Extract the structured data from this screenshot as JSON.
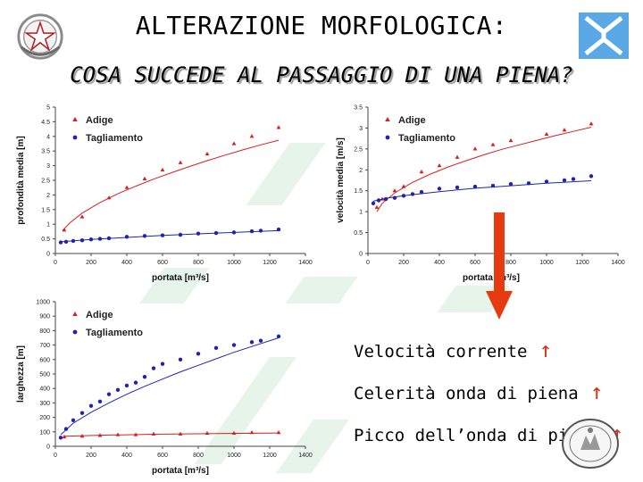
{
  "header": {
    "title_line1": "ALTERAZIONE MORFOLOGICA:",
    "title_line2": "COSA SUCCEDE AL PASSAGGIO DI UNA PIENA?"
  },
  "bullets": [
    {
      "text": "Velocità corrente",
      "arrow": "↑"
    },
    {
      "text": "Celerità onda di piena",
      "arrow": "↑"
    },
    {
      "text": "Picco dell’onda di piena",
      "arrow": "↑"
    }
  ],
  "colors": {
    "adige": "#d42020",
    "tagliamento": "#1f24b0",
    "arrow": "#e03010"
  },
  "icons": {
    "emblem": "italian-republic-emblem-icon",
    "logo": "institution-logo-icon",
    "seal": "university-seal-icon",
    "arrow": "red-down-arrow-icon"
  },
  "chart_data": [
    {
      "type": "scatter",
      "xlabel": "portata [m³/s]",
      "ylabel": "profondità media [m]",
      "xlim": [
        0,
        1400
      ],
      "ylim": [
        0,
        5
      ],
      "xticks": [
        "0",
        "200",
        "400",
        "600",
        "800",
        "1000",
        "1200",
        "1400"
      ],
      "yticks": [
        "0",
        "0.5",
        "1",
        "1.5",
        "2",
        "2.5",
        "3",
        "3.5",
        "4",
        "4.5",
        "5"
      ],
      "legend_position": "top-left",
      "series": [
        {
          "name": "Adige",
          "marker": "triangle",
          "x": [
            50,
            150,
            300,
            400,
            500,
            600,
            700,
            850,
            1000,
            1100,
            1250
          ],
          "y": [
            0.8,
            1.25,
            1.9,
            2.25,
            2.55,
            2.85,
            3.1,
            3.4,
            3.75,
            4.0,
            4.3
          ],
          "fit_x": [
            40,
            80,
            150,
            250,
            350,
            450,
            550,
            650,
            750,
            850,
            950,
            1050,
            1150,
            1250
          ],
          "fit_y": [
            0.78,
            1.04,
            1.38,
            1.74,
            2.04,
            2.3,
            2.54,
            2.76,
            2.97,
            3.17,
            3.36,
            3.54,
            3.71,
            3.87
          ]
        },
        {
          "name": "Tagliamento",
          "marker": "circle",
          "x": [
            30,
            60,
            100,
            150,
            200,
            250,
            300,
            400,
            500,
            600,
            700,
            800,
            900,
            1000,
            1100,
            1150,
            1250
          ],
          "y": [
            0.38,
            0.4,
            0.43,
            0.45,
            0.48,
            0.5,
            0.52,
            0.57,
            0.6,
            0.62,
            0.64,
            0.68,
            0.7,
            0.72,
            0.76,
            0.78,
            0.82
          ],
          "fit_x": [
            30,
            200,
            400,
            600,
            800,
            1000,
            1250
          ],
          "fit_y": [
            0.4,
            0.48,
            0.55,
            0.62,
            0.67,
            0.72,
            0.78
          ]
        }
      ]
    },
    {
      "type": "scatter",
      "xlabel": "portata [m³/s]",
      "ylabel": "velocità media [m/s]",
      "xlim": [
        0,
        1400
      ],
      "ylim": [
        0,
        3.5
      ],
      "xticks": [
        "0",
        "200",
        "400",
        "600",
        "800",
        "1000",
        "1200",
        "1400"
      ],
      "yticks": [
        "0",
        "0.5",
        "1",
        "1.5",
        "2",
        "2.5",
        "3",
        "3.5"
      ],
      "legend_position": "top-left",
      "series": [
        {
          "name": "Adige",
          "marker": "triangle",
          "x": [
            50,
            80,
            150,
            200,
            300,
            400,
            500,
            600,
            700,
            800,
            1000,
            1100,
            1250
          ],
          "y": [
            1.1,
            1.3,
            1.5,
            1.6,
            1.95,
            2.1,
            2.3,
            2.5,
            2.6,
            2.7,
            2.85,
            2.95,
            3.1
          ],
          "fit_x": [
            50,
            80,
            150,
            250,
            350,
            450,
            550,
            650,
            750,
            850,
            950,
            1050,
            1150,
            1250
          ],
          "fit_y": [
            1.0,
            1.2,
            1.45,
            1.7,
            1.9,
            2.07,
            2.22,
            2.36,
            2.49,
            2.6,
            2.71,
            2.82,
            2.92,
            3.02
          ]
        },
        {
          "name": "Tagliamento",
          "marker": "circle",
          "x": [
            30,
            60,
            100,
            150,
            200,
            250,
            300,
            400,
            500,
            600,
            700,
            800,
            900,
            1000,
            1100,
            1150,
            1250
          ],
          "y": [
            1.2,
            1.27,
            1.3,
            1.33,
            1.38,
            1.42,
            1.47,
            1.55,
            1.58,
            1.6,
            1.62,
            1.66,
            1.68,
            1.72,
            1.75,
            1.78,
            1.85
          ],
          "fit_x": [
            30,
            100,
            200,
            400,
            600,
            800,
            1000,
            1250
          ],
          "fit_y": [
            1.25,
            1.32,
            1.38,
            1.48,
            1.56,
            1.62,
            1.68,
            1.74
          ]
        }
      ]
    },
    {
      "type": "scatter",
      "xlabel": "portata [m³/s]",
      "ylabel": "larghezza [m]",
      "xlim": [
        0,
        1400
      ],
      "ylim": [
        0,
        1000
      ],
      "xticks": [
        "0",
        "200",
        "400",
        "600",
        "800",
        "1000",
        "1200",
        "1400"
      ],
      "yticks": [
        "0",
        "100",
        "200",
        "300",
        "400",
        "500",
        "600",
        "700",
        "800",
        "900",
        "1000"
      ],
      "legend_position": "top-left",
      "series": [
        {
          "name": "Adige",
          "marker": "triangle",
          "x": [
            50,
            150,
            250,
            350,
            450,
            550,
            700,
            850,
            1000,
            1100,
            1250
          ],
          "y": [
            65,
            70,
            75,
            80,
            80,
            85,
            85,
            90,
            90,
            95,
            95
          ],
          "fit_x": [
            50,
            300,
            600,
            900,
            1250
          ],
          "fit_y": [
            70,
            78,
            84,
            88,
            92
          ]
        },
        {
          "name": "Tagliamento",
          "marker": "circle",
          "x": [
            30,
            60,
            100,
            150,
            200,
            250,
            300,
            350,
            400,
            450,
            500,
            550,
            600,
            700,
            800,
            900,
            1000,
            1100,
            1150,
            1250
          ],
          "y": [
            60,
            120,
            180,
            230,
            280,
            310,
            360,
            390,
            420,
            440,
            480,
            540,
            570,
            600,
            640,
            680,
            700,
            720,
            730,
            760
          ],
          "fit_x": [
            30,
            100,
            200,
            300,
            400,
            500,
            600,
            700,
            800,
            900,
            1000,
            1100,
            1250
          ],
          "fit_y": [
            80,
            160,
            235,
            300,
            360,
            415,
            465,
            515,
            560,
            605,
            650,
            690,
            750
          ]
        }
      ]
    }
  ]
}
